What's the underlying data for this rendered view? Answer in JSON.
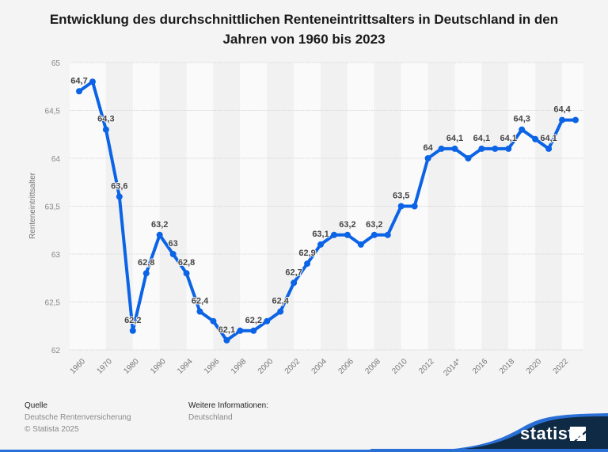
{
  "chart_data": {
    "type": "line",
    "title": "Entwicklung des durchschnittlichen Renteneintrittsalters in Deutschland in den Jahren von 1960 bis 2023",
    "ylabel": "Renteneintrittsalter",
    "xlabel": "",
    "ylim": [
      62,
      65
    ],
    "yticks": [
      "62",
      "62,5",
      "63",
      "63,5",
      "64",
      "64,5",
      "65"
    ],
    "grid": true,
    "categories": [
      "1960",
      "1965",
      "1970",
      "1975",
      "1980",
      "1985",
      "1990",
      "1992",
      "1994",
      "1995",
      "1996",
      "1997",
      "1998",
      "1999",
      "2000",
      "2001",
      "2002",
      "2003",
      "2004",
      "2005",
      "2006",
      "2007",
      "2008",
      "2009",
      "2010",
      "2011",
      "2012",
      "2013",
      "2014*",
      "2015",
      "2016",
      "2017",
      "2018",
      "2019",
      "2020",
      "2021",
      "2022",
      "2023"
    ],
    "tick_labels": [
      "1960",
      "",
      "1970",
      "",
      "1980",
      "",
      "1990",
      "",
      "1994",
      "",
      "1996",
      "",
      "1998",
      "",
      "2000",
      "",
      "2002",
      "",
      "2004",
      "",
      "2006",
      "",
      "2008",
      "",
      "2010",
      "",
      "2012",
      "",
      "2014*",
      "",
      "2016",
      "",
      "2018",
      "",
      "2020",
      "",
      "2022",
      ""
    ],
    "values": [
      64.7,
      64.8,
      64.3,
      63.6,
      62.2,
      62.8,
      63.2,
      63.0,
      62.8,
      62.4,
      62.3,
      62.1,
      62.2,
      62.2,
      62.3,
      62.4,
      62.7,
      62.9,
      63.1,
      63.2,
      63.2,
      63.1,
      63.2,
      63.2,
      63.5,
      63.5,
      64.0,
      64.1,
      64.1,
      64.0,
      64.1,
      64.1,
      64.1,
      64.3,
      64.2,
      64.1,
      64.4,
      64.4
    ],
    "data_labels": [
      "64,7",
      "",
      "64,3",
      "63,6",
      "62,2",
      "62,8",
      "63,2",
      "63",
      "62,8",
      "62,4",
      "",
      "62,1",
      "",
      "62,2",
      "",
      "62,4",
      "62,7",
      "62,9",
      "63,1",
      "",
      "63,2",
      "",
      "63,2",
      "",
      "63,5",
      "",
      "64",
      "",
      "64,1",
      "",
      "64,1",
      "",
      "64,1",
      "64,3",
      "",
      "64,1",
      "64,4",
      ""
    ],
    "line_color": "#0b63e5"
  },
  "footer": {
    "source_heading": "Quelle",
    "source": "Deutsche Rentenversicherung",
    "copyright": "© Statista 2025",
    "info_heading": "Weitere Informationen:",
    "info": "Deutschland"
  },
  "logo": {
    "text": "statista"
  }
}
